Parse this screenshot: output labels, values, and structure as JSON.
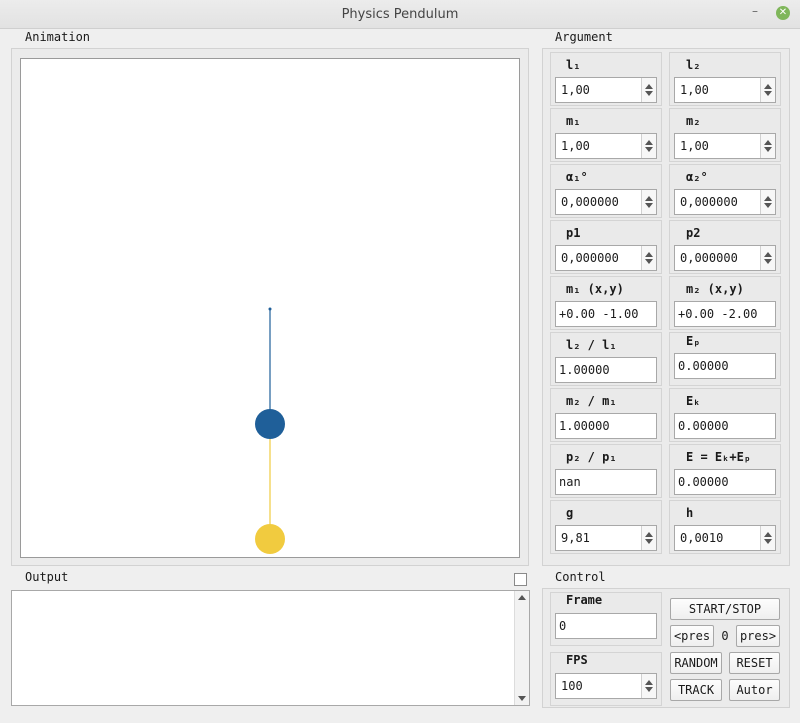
{
  "window": {
    "title": "Physics Pendulum",
    "minimize_glyph": "–",
    "close_glyph": "✕"
  },
  "colors": {
    "mass1": "#1f5f99",
    "mass2": "#f1cb3f",
    "rod1": "#1f5f99",
    "rod2": "#f1cb3f",
    "close_button": "#7fb65a"
  },
  "animation": {
    "title": "Animation",
    "pendulum": {
      "l1": 1.0,
      "l2": 1.0,
      "alpha1_deg": 0.0,
      "alpha2_deg": 0.0,
      "m1_xy": [
        0.0,
        -1.0
      ],
      "m2_xy": [
        0.0,
        -2.0
      ]
    }
  },
  "argument": {
    "title": "Argument",
    "fields": {
      "l1": {
        "label": "l₁",
        "value": "1,00"
      },
      "l2": {
        "label": "l₂",
        "value": "1,00"
      },
      "m1": {
        "label": "m₁",
        "value": "1,00"
      },
      "m2": {
        "label": "m₂",
        "value": "1,00"
      },
      "a1": {
        "label": "α₁°",
        "value": "0,000000"
      },
      "a2": {
        "label": "α₂°",
        "value": "0,000000"
      },
      "p1": {
        "label": "p1",
        "value": "0,000000"
      },
      "p2": {
        "label": "p2",
        "value": "0,000000"
      },
      "m1xy": {
        "label": "m₁ (x,y)",
        "value": "+0.00 -1.00"
      },
      "m2xy": {
        "label": "m₂ (x,y)",
        "value": "+0.00 -2.00"
      },
      "l2l1": {
        "label": "l₂ / l₁",
        "value": "1.00000"
      },
      "ep": {
        "label": "Eₚ",
        "value": "0.00000"
      },
      "m2m1": {
        "label": "m₂ / m₁",
        "value": "1.00000"
      },
      "ek": {
        "label": "Eₖ",
        "value": "0.00000"
      },
      "p2p1": {
        "label": "p₂ / p₁",
        "value": "nan"
      },
      "e": {
        "label": "E = Eₖ+Eₚ",
        "value": "0.00000"
      },
      "g": {
        "label": "g",
        "value": "9,81"
      },
      "h": {
        "label": "h",
        "value": "0,0010"
      }
    }
  },
  "output": {
    "title": "Output",
    "content": ""
  },
  "control": {
    "title": "Control",
    "frame": {
      "label": "Frame",
      "value": "0"
    },
    "fps": {
      "label": "FPS",
      "value": "100"
    },
    "buttons": {
      "start_stop": "START/STOP",
      "prev": "<pres",
      "pres_value": "0",
      "next": "pres>",
      "random": "RANDOM",
      "reset": "RESET",
      "track": "TRACK",
      "autor": "Autor"
    }
  }
}
